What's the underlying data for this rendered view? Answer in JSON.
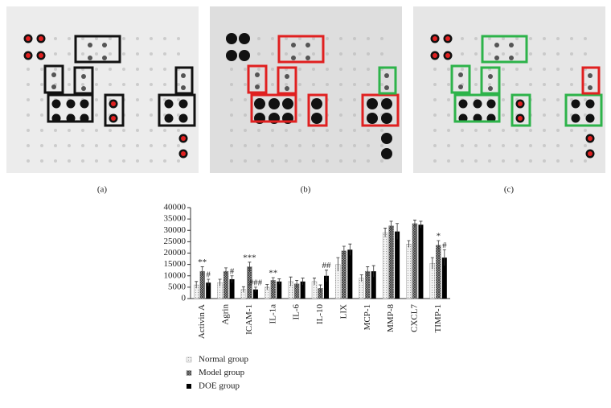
{
  "panels": [
    {
      "label": "(a)"
    },
    {
      "label": "(b)"
    },
    {
      "label": "(c)"
    }
  ],
  "chart_data": {
    "type": "bar",
    "categories": [
      "Activin A",
      "Agrin",
      "ICAM-1",
      "IL-1a",
      "IL-6",
      "IL-10",
      "LIX",
      "MCP-1",
      "MMP-8",
      "CXCL7",
      "TIMP-1"
    ],
    "series": [
      {
        "name": "Normal group",
        "color": "#d0d0d0",
        "values": [
          6000,
          7000,
          4000,
          5000,
          7500,
          7500,
          15000,
          9000,
          29000,
          24000,
          15500
        ],
        "errors": [
          1500,
          1500,
          1200,
          1200,
          2000,
          1500,
          3000,
          1500,
          2000,
          1500,
          2500
        ],
        "significance": [
          null,
          null,
          null,
          null,
          null,
          null,
          null,
          null,
          null,
          null,
          null
        ]
      },
      {
        "name": "Model group",
        "color": "#707070",
        "values": [
          12000,
          12000,
          14000,
          8000,
          6500,
          4500,
          21000,
          12000,
          32000,
          33000,
          23500
        ],
        "errors": [
          2000,
          1500,
          2000,
          1200,
          1500,
          1500,
          2000,
          2000,
          2000,
          1500,
          2000
        ],
        "significance": [
          "**",
          null,
          "***",
          "**",
          null,
          null,
          null,
          null,
          null,
          null,
          "*"
        ]
      },
      {
        "name": "DOE group",
        "color": "#000000",
        "values": [
          7000,
          8500,
          4000,
          7500,
          7500,
          10000,
          21500,
          12000,
          29500,
          32500,
          18000
        ],
        "errors": [
          1500,
          1500,
          1000,
          1200,
          1500,
          2500,
          2500,
          2500,
          3500,
          1500,
          3500
        ],
        "significance": [
          "#",
          "#",
          "###",
          null,
          null,
          "##",
          null,
          null,
          null,
          null,
          "#"
        ]
      }
    ],
    "ylim": [
      0,
      40000
    ],
    "yticks": [
      0,
      5000,
      10000,
      15000,
      20000,
      25000,
      30000,
      35000,
      40000
    ],
    "legend": "bottom"
  }
}
